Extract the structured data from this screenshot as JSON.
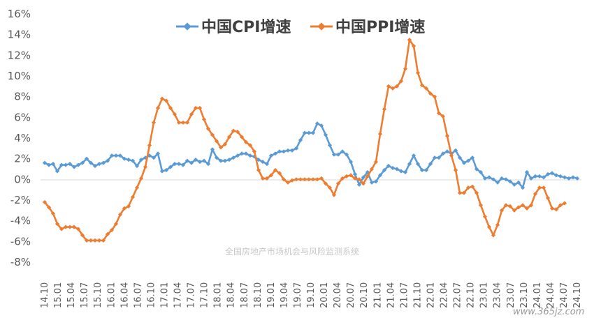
{
  "chart_data": {
    "type": "line",
    "title": "",
    "xlabel": "",
    "ylabel": "",
    "ylim": [
      -8,
      16
    ],
    "yticks": [
      "16%",
      "14%",
      "12%",
      "10%",
      "8%",
      "6%",
      "4%",
      "2%",
      "0%",
      "-2%",
      "-4%",
      "-6%",
      "-8%"
    ],
    "xtick_labels": [
      "14.10",
      "15.01",
      "15.04",
      "15.07",
      "15.10",
      "16.01",
      "16.04",
      "16.07",
      "16.10",
      "17.01",
      "17.04",
      "17.07",
      "17.10",
      "18.01",
      "18.04",
      "18.07",
      "18.10",
      "19.01",
      "19.04",
      "19.07",
      "19.10",
      "20.01",
      "20.04",
      "20.07",
      "20.10",
      "21.01",
      "21.04",
      "21.07",
      "21.10",
      "22.01",
      "22.04",
      "22.07",
      "22.10",
      "23.01",
      "23.04",
      "23.07",
      "23.10",
      "24.01",
      "24.04",
      "24.07",
      "24.10"
    ],
    "grid": false,
    "legend_position": "top-center",
    "series": [
      {
        "name": "中国CPI增速",
        "color": "#5b9bd5",
        "values": [
          1.6,
          1.4,
          1.5,
          0.8,
          1.4,
          1.4,
          1.5,
          1.2,
          1.4,
          1.6,
          2.0,
          1.6,
          1.3,
          1.5,
          1.6,
          1.8,
          2.3,
          2.3,
          2.3,
          2.0,
          1.9,
          1.8,
          1.3,
          1.9,
          2.1,
          2.3,
          2.1,
          2.5,
          0.8,
          0.9,
          1.2,
          1.5,
          1.5,
          1.4,
          1.8,
          1.6,
          1.9,
          1.7,
          1.8,
          1.5,
          2.9,
          2.1,
          1.8,
          1.8,
          1.9,
          2.1,
          2.3,
          2.5,
          2.5,
          2.3,
          2.2,
          1.9,
          1.7,
          1.5,
          2.3,
          2.5,
          2.7,
          2.7,
          2.8,
          2.8,
          3.0,
          3.8,
          4.5,
          4.5,
          4.5,
          5.4,
          5.2,
          4.3,
          3.3,
          2.4,
          2.4,
          2.7,
          2.4,
          1.7,
          0.5,
          -0.5,
          0.2,
          0.7,
          -0.3,
          -0.2,
          0.4,
          0.9,
          1.3,
          1.1,
          1.0,
          0.8,
          0.7,
          1.5,
          2.3,
          1.5,
          0.9,
          0.9,
          1.5,
          2.1,
          2.1,
          2.5,
          2.7,
          2.5,
          2.8,
          2.1,
          1.6,
          1.8,
          2.1,
          1.0,
          0.7,
          0.1,
          0.2,
          0.0,
          -0.3,
          0.1,
          0.0,
          -0.2,
          -0.5,
          -0.3,
          -0.8,
          0.7,
          0.1,
          0.3,
          0.3,
          0.2,
          0.5,
          0.6,
          0.4,
          0.3,
          0.2,
          0.1,
          0.2,
          0.1
        ],
        "x_start_index": 0
      },
      {
        "name": "中国PPI增速",
        "color": "#ed7d31",
        "values": [
          -2.2,
          -2.7,
          -3.3,
          -4.3,
          -4.8,
          -4.6,
          -4.6,
          -4.6,
          -4.8,
          -5.4,
          -5.9,
          -5.9,
          -5.9,
          -5.9,
          -5.9,
          -5.3,
          -4.9,
          -4.3,
          -3.4,
          -2.8,
          -2.6,
          -1.7,
          -0.8,
          0.1,
          1.2,
          3.3,
          5.5,
          6.9,
          7.8,
          7.6,
          6.9,
          6.3,
          5.5,
          5.5,
          5.5,
          6.3,
          6.9,
          6.9,
          5.8,
          4.9,
          4.3,
          3.7,
          3.1,
          3.4,
          4.1,
          4.7,
          4.6,
          4.1,
          3.6,
          3.3,
          2.7,
          0.9,
          0.1,
          0.1,
          0.4,
          0.9,
          0.6,
          0.0,
          -0.3,
          -0.1,
          0.0,
          0.0,
          0.0,
          0.0,
          0.0,
          0.0,
          0.1,
          -0.4,
          -0.8,
          -1.5,
          -0.4,
          0.1,
          0.3,
          0.4,
          0.1,
          0.0,
          -0.4,
          0.3,
          1.0,
          1.7,
          4.4,
          6.8,
          9.0,
          8.8,
          9.0,
          9.5,
          10.7,
          13.5,
          12.9,
          10.3,
          9.1,
          8.8,
          8.3,
          8.0,
          6.4,
          6.1,
          4.2,
          2.3,
          0.9,
          -1.3,
          -1.3,
          -0.8,
          -0.7,
          -1.3,
          -2.5,
          -3.6,
          -4.6,
          -5.4,
          -4.4,
          -3.0,
          -2.5,
          -2.6,
          -3.0,
          -2.7,
          -2.5,
          -2.8,
          -2.5,
          -1.4,
          -0.8,
          -0.8,
          -1.8,
          -2.8,
          -2.9,
          -2.5,
          -2.3
        ],
        "x_start_index": 0
      }
    ]
  },
  "legend": {
    "cpi_label": "中国CPI增速",
    "ppi_label": "中国PPI增速"
  },
  "watermark": "全国房地产市场机会与风险监测系统",
  "site_mark": "www.365jz.com"
}
